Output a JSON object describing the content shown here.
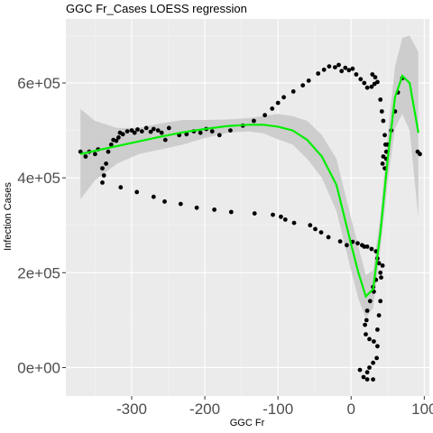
{
  "chart_data": {
    "type": "scatter",
    "title": "GGC Fr_Cases LOESS regression",
    "xlabel": "GGC Fr",
    "ylabel": "Infection Cases",
    "xlim": [
      -390,
      107
    ],
    "ylim": [
      -60000,
      735000
    ],
    "x_ticks": [
      -300,
      -200,
      -100,
      0,
      100
    ],
    "x_tick_labels": [
      "-300",
      "-200",
      "-100",
      "0",
      "100"
    ],
    "y_ticks": [
      0,
      200000,
      400000,
      600000
    ],
    "y_tick_labels": [
      "0e+00",
      "2e+05",
      "4e+05",
      "6e+05"
    ],
    "grid": true,
    "colors": {
      "panel": "#ebebeb",
      "grid_major": "#ffffff",
      "grid_minor": "#f5f5f5",
      "points": "#000000",
      "smooth_line": "#00ee00",
      "ribbon": "#c8c8c8"
    },
    "points": [
      [
        -370,
        455000
      ],
      [
        -363,
        445000
      ],
      [
        -358,
        455000
      ],
      [
        -350,
        450000
      ],
      [
        -346,
        460000
      ],
      [
        -340,
        420000
      ],
      [
        -338,
        405000
      ],
      [
        -335,
        430000
      ],
      [
        -332,
        455000
      ],
      [
        -328,
        470000
      ],
      [
        -325,
        480000
      ],
      [
        -321,
        478000
      ],
      [
        -318,
        485000
      ],
      [
        -316,
        495000
      ],
      [
        -312,
        492000
      ],
      [
        -306,
        498000
      ],
      [
        -300,
        500000
      ],
      [
        -296,
        495000
      ],
      [
        -292,
        502000
      ],
      [
        -286,
        498000
      ],
      [
        -280,
        505000
      ],
      [
        -274,
        497000
      ],
      [
        -270,
        503000
      ],
      [
        -264,
        500000
      ],
      [
        -259,
        495000
      ],
      [
        -254,
        480000
      ],
      [
        -249,
        505000
      ],
      [
        -235,
        490000
      ],
      [
        -225,
        492000
      ],
      [
        -215,
        498000
      ],
      [
        -206,
        495000
      ],
      [
        -198,
        503000
      ],
      [
        -190,
        498000
      ],
      [
        -180,
        490000
      ],
      [
        -165,
        500000
      ],
      [
        -148,
        510000
      ],
      [
        -133,
        520000
      ],
      [
        -118,
        532000
      ],
      [
        -108,
        546000
      ],
      [
        -100,
        558000
      ],
      [
        -92,
        570000
      ],
      [
        -79,
        582000
      ],
      [
        -66,
        595000
      ],
      [
        -58,
        605000
      ],
      [
        -45,
        620000
      ],
      [
        -37,
        628000
      ],
      [
        -30,
        635000
      ],
      [
        -22,
        633000
      ],
      [
        -17,
        638000
      ],
      [
        -13,
        625000
      ],
      [
        -8,
        632000
      ],
      [
        -3,
        627000
      ],
      [
        2,
        630000
      ],
      [
        7,
        618000
      ],
      [
        13,
        608000
      ],
      [
        18,
        600000
      ],
      [
        22,
        590000
      ],
      [
        28,
        592000
      ],
      [
        32,
        598000
      ],
      [
        36,
        602000
      ],
      [
        29,
        618000
      ],
      [
        33,
        612000
      ],
      [
        40,
        565000
      ],
      [
        42,
        540000
      ],
      [
        44,
        520000
      ],
      [
        46,
        490000
      ],
      [
        47,
        470000
      ],
      [
        48,
        455000
      ],
      [
        44,
        445000
      ],
      [
        43,
        430000
      ],
      [
        46,
        420000
      ],
      [
        48,
        440000
      ],
      [
        50,
        470000
      ],
      [
        55,
        500000
      ],
      [
        60,
        540000
      ],
      [
        64,
        580000
      ],
      [
        70,
        610000
      ],
      [
        91,
        455000
      ],
      [
        94,
        450000
      ],
      [
        -340,
        390000
      ],
      [
        -315,
        380000
      ],
      [
        -293,
        370000
      ],
      [
        -270,
        360000
      ],
      [
        -255,
        350000
      ],
      [
        -233,
        345000
      ],
      [
        -211,
        337000
      ],
      [
        -187,
        333000
      ],
      [
        -164,
        328000
      ],
      [
        -132,
        325000
      ],
      [
        -107,
        322000
      ],
      [
        -96,
        318000
      ],
      [
        -90,
        312000
      ],
      [
        -78,
        305000
      ],
      [
        -56,
        300000
      ],
      [
        -49,
        292000
      ],
      [
        -41,
        285000
      ],
      [
        -31,
        275000
      ],
      [
        -15,
        266000
      ],
      [
        -6,
        258000
      ],
      [
        2,
        265000
      ],
      [
        9,
        262000
      ],
      [
        15,
        258000
      ],
      [
        18,
        255000
      ],
      [
        22,
        255000
      ],
      [
        28,
        250000
      ],
      [
        34,
        245000
      ],
      [
        36,
        230000
      ],
      [
        38,
        220000
      ],
      [
        40,
        200000
      ],
      [
        41,
        190000
      ],
      [
        34,
        185000
      ],
      [
        30,
        170000
      ],
      [
        31,
        160000
      ],
      [
        26,
        140000
      ],
      [
        22,
        120000
      ],
      [
        21,
        100000
      ],
      [
        19,
        90000
      ],
      [
        20,
        70000
      ],
      [
        25,
        60000
      ],
      [
        31,
        55000
      ],
      [
        36,
        45000
      ],
      [
        35,
        20000
      ],
      [
        30,
        10000
      ],
      [
        25,
        0
      ],
      [
        22,
        -10000
      ],
      [
        17,
        -20000
      ],
      [
        12,
        -5000
      ],
      [
        22,
        -25000
      ],
      [
        30,
        -25000
      ],
      [
        36,
        80000
      ],
      [
        40,
        140000
      ],
      [
        38,
        110000
      ],
      [
        43,
        215000
      ]
    ],
    "loess_fit": {
      "x": [
        -370,
        -350,
        -320,
        -290,
        -260,
        -230,
        -200,
        -170,
        -140,
        -120,
        -100,
        -80,
        -60,
        -40,
        -20,
        0,
        10,
        20,
        30,
        40,
        50,
        60,
        70,
        80,
        92
      ],
      "y": [
        450000,
        457000,
        467000,
        477000,
        487000,
        496000,
        503000,
        509000,
        512000,
        512000,
        508000,
        500000,
        480000,
        445000,
        385000,
        260000,
        200000,
        150000,
        165000,
        285000,
        440000,
        570000,
        615000,
        600000,
        495000
      ]
    },
    "ribbon": {
      "x": [
        -370,
        -350,
        -320,
        -290,
        -260,
        -230,
        -200,
        -170,
        -140,
        -120,
        -100,
        -80,
        -60,
        -40,
        -20,
        0,
        10,
        20,
        30,
        40,
        50,
        60,
        70,
        80,
        92
      ],
      "upper": [
        545000,
        520000,
        505000,
        505000,
        515000,
        522000,
        522000,
        523000,
        526000,
        530000,
        535000,
        530000,
        520000,
        490000,
        440000,
        315000,
        255000,
        195000,
        205000,
        320000,
        490000,
        635000,
        695000,
        700000,
        665000
      ],
      "lower": [
        355000,
        395000,
        430000,
        450000,
        460000,
        470000,
        484000,
        495000,
        498000,
        494000,
        481000,
        470000,
        440000,
        400000,
        330000,
        205000,
        145000,
        105000,
        125000,
        250000,
        390000,
        505000,
        535000,
        500000,
        315000
      ]
    }
  }
}
